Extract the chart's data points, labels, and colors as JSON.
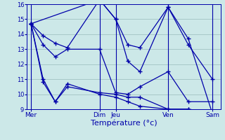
{
  "xlabel": "Température (°c)",
  "background_color": "#cce8e8",
  "line_color": "#0000aa",
  "grid_color": "#99bbbb",
  "ylim": [
    9,
    16
  ],
  "yticks": [
    9,
    10,
    11,
    12,
    13,
    14,
    15,
    16
  ],
  "xlim": [
    0,
    48
  ],
  "day_tick_positions": [
    1,
    18,
    22,
    35,
    46
  ],
  "day_labels": [
    "Mer",
    "Dim",
    "Jeu",
    "Ven",
    "Sam"
  ],
  "day_vline_positions": [
    1,
    18,
    22,
    35,
    46
  ],
  "lines": [
    {
      "x": [
        1,
        4,
        7,
        10,
        18,
        22,
        25,
        28,
        35,
        40,
        46
      ],
      "y": [
        14.7,
        13.9,
        13.4,
        13.1,
        16.3,
        15.0,
        13.3,
        13.1,
        15.8,
        13.7,
        8.7
      ]
    },
    {
      "x": [
        1,
        4,
        7,
        10,
        18,
        22,
        25,
        28,
        35,
        40,
        46
      ],
      "y": [
        14.7,
        13.3,
        12.5,
        13.0,
        13.0,
        10.1,
        10.0,
        10.5,
        11.5,
        9.5,
        9.5
      ]
    },
    {
      "x": [
        1,
        4,
        7,
        10,
        18,
        22,
        25,
        28,
        35,
        40,
        46
      ],
      "y": [
        14.7,
        11.0,
        9.5,
        10.5,
        10.1,
        10.0,
        9.8,
        9.8,
        9.0,
        9.0,
        8.8
      ]
    },
    {
      "x": [
        1,
        4,
        7,
        10,
        18,
        22,
        25,
        28,
        35,
        40,
        46
      ],
      "y": [
        14.7,
        10.8,
        9.5,
        10.7,
        10.0,
        9.8,
        9.5,
        9.2,
        9.0,
        9.0,
        8.7
      ]
    },
    {
      "x": [
        1,
        18,
        22,
        25,
        28,
        35,
        40,
        46
      ],
      "y": [
        14.7,
        16.3,
        15.0,
        12.2,
        11.5,
        15.8,
        13.3,
        11.0
      ]
    }
  ]
}
